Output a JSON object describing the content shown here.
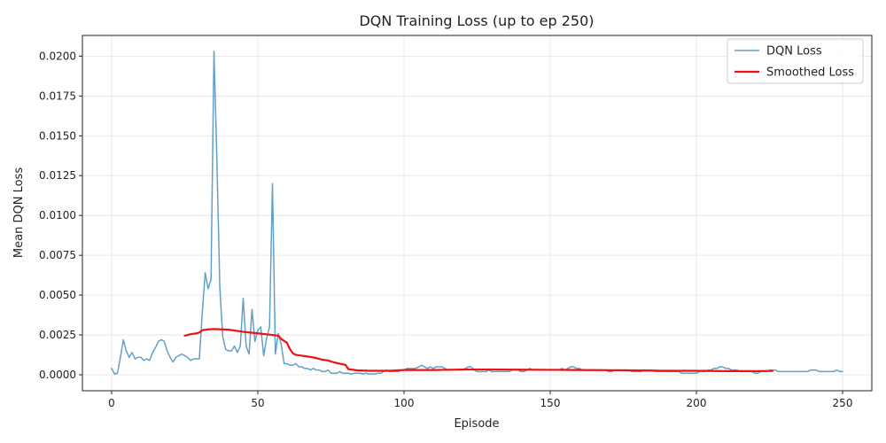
{
  "chart_data": {
    "type": "line",
    "title": "DQN Training Loss (up to ep 250)",
    "xlabel": "Episode",
    "ylabel": "Mean DQN Loss",
    "xlim": [
      -10,
      260
    ],
    "ylim": [
      -0.001,
      0.0213
    ],
    "xticks": [
      0,
      50,
      100,
      150,
      200,
      250
    ],
    "yticks": [
      0.0,
      0.0025,
      0.005,
      0.0075,
      0.01,
      0.0125,
      0.015,
      0.0175,
      0.02
    ],
    "ytick_labels": [
      "0.0000",
      "0.0025",
      "0.0050",
      "0.0075",
      "0.0100",
      "0.0125",
      "0.0150",
      "0.0175",
      "0.0200"
    ],
    "grid": true,
    "legend_position": "upper right",
    "series": [
      {
        "name": "DQN Loss",
        "color": "#1f77b4",
        "points": [
          [
            0,
            0.0004
          ],
          [
            1,
            5e-05
          ],
          [
            2,
            0.0001
          ],
          [
            3,
            0.0011
          ],
          [
            4,
            0.0022
          ],
          [
            5,
            0.0015
          ],
          [
            6,
            0.0011
          ],
          [
            7,
            0.0014
          ],
          [
            8,
            0.001
          ],
          [
            9,
            0.0011
          ],
          [
            10,
            0.0011
          ],
          [
            11,
            0.0009
          ],
          [
            12,
            0.001
          ],
          [
            13,
            0.0009
          ],
          [
            14,
            0.0014
          ],
          [
            15,
            0.0017
          ],
          [
            16,
            0.0021
          ],
          [
            17,
            0.0022
          ],
          [
            18,
            0.0021
          ],
          [
            19,
            0.0015
          ],
          [
            20,
            0.0011
          ],
          [
            21,
            0.0008
          ],
          [
            22,
            0.0011
          ],
          [
            23,
            0.0012
          ],
          [
            24,
            0.0013
          ],
          [
            25,
            0.0012
          ],
          [
            26,
            0.0011
          ],
          [
            27,
            0.0009
          ],
          [
            28,
            0.001
          ],
          [
            29,
            0.001
          ],
          [
            30,
            0.001
          ],
          [
            31,
            0.0039
          ],
          [
            32,
            0.0064
          ],
          [
            33,
            0.0054
          ],
          [
            34,
            0.006
          ],
          [
            35,
            0.0203
          ],
          [
            36,
            0.0135
          ],
          [
            37,
            0.0055
          ],
          [
            38,
            0.0024
          ],
          [
            39,
            0.0016
          ],
          [
            40,
            0.0015
          ],
          [
            41,
            0.0015
          ],
          [
            42,
            0.0018
          ],
          [
            43,
            0.0014
          ],
          [
            44,
            0.0018
          ],
          [
            45,
            0.0048
          ],
          [
            46,
            0.0018
          ],
          [
            47,
            0.0013
          ],
          [
            48,
            0.0041
          ],
          [
            49,
            0.0021
          ],
          [
            50,
            0.0028
          ],
          [
            51,
            0.003
          ],
          [
            52,
            0.0012
          ],
          [
            53,
            0.0023
          ],
          [
            54,
            0.003
          ],
          [
            55,
            0.012
          ],
          [
            56,
            0.0013
          ],
          [
            57,
            0.0026
          ],
          [
            58,
            0.0019
          ],
          [
            59,
            0.0007
          ],
          [
            60,
            0.0007
          ],
          [
            61,
            0.0006
          ],
          [
            62,
            0.0006
          ],
          [
            63,
            0.0007
          ],
          [
            64,
            0.0005
          ],
          [
            65,
            0.0005
          ],
          [
            66,
            0.0004
          ],
          [
            67,
            0.0004
          ],
          [
            68,
            0.0003
          ],
          [
            69,
            0.0004
          ],
          [
            70,
            0.0003
          ],
          [
            71,
            0.0003
          ],
          [
            72,
            0.0002
          ],
          [
            73,
            0.0002
          ],
          [
            74,
            0.0003
          ],
          [
            75,
            0.0001
          ],
          [
            76,
            0.0001
          ],
          [
            77,
            0.0001
          ],
          [
            78,
            0.0002
          ],
          [
            79,
            0.0001
          ],
          [
            80,
            0.0001
          ],
          [
            81,
            0.0001
          ],
          [
            82,
            5e-05
          ],
          [
            83,
            0.0001
          ],
          [
            84,
            0.0001
          ],
          [
            85,
            0.0001
          ],
          [
            86,
            5e-05
          ],
          [
            87,
            0.0001
          ],
          [
            88,
            5e-05
          ],
          [
            89,
            5e-05
          ],
          [
            90,
            5e-05
          ],
          [
            91,
            0.0001
          ],
          [
            92,
            0.0001
          ],
          [
            93,
            0.0002
          ],
          [
            94,
            0.0003
          ],
          [
            95,
            0.0002
          ],
          [
            96,
            0.0002
          ],
          [
            97,
            0.0002
          ],
          [
            98,
            0.0002
          ],
          [
            99,
            0.0003
          ],
          [
            100,
            0.0003
          ],
          [
            101,
            0.0004
          ],
          [
            102,
            0.0004
          ],
          [
            103,
            0.0004
          ],
          [
            104,
            0.0004
          ],
          [
            105,
            0.0005
          ],
          [
            106,
            0.0006
          ],
          [
            107,
            0.0005
          ],
          [
            108,
            0.0004
          ],
          [
            109,
            0.0005
          ],
          [
            110,
            0.0004
          ],
          [
            111,
            0.0005
          ],
          [
            112,
            0.0005
          ],
          [
            113,
            0.0005
          ],
          [
            114,
            0.0004
          ],
          [
            115,
            0.0003
          ],
          [
            116,
            0.0003
          ],
          [
            117,
            0.0003
          ],
          [
            118,
            0.0003
          ],
          [
            119,
            0.0003
          ],
          [
            120,
            0.0003
          ],
          [
            121,
            0.0004
          ],
          [
            122,
            0.0005
          ],
          [
            123,
            0.0005
          ],
          [
            124,
            0.0003
          ],
          [
            125,
            0.0002
          ],
          [
            126,
            0.0002
          ],
          [
            127,
            0.0002
          ],
          [
            128,
            0.0002
          ],
          [
            129,
            0.0003
          ],
          [
            130,
            0.0002
          ],
          [
            131,
            0.0002
          ],
          [
            132,
            0.0002
          ],
          [
            133,
            0.0002
          ],
          [
            134,
            0.0002
          ],
          [
            135,
            0.0002
          ],
          [
            136,
            0.0002
          ],
          [
            137,
            0.0003
          ],
          [
            138,
            0.0003
          ],
          [
            139,
            0.0003
          ],
          [
            140,
            0.0002
          ],
          [
            141,
            0.0002
          ],
          [
            142,
            0.0003
          ],
          [
            143,
            0.0004
          ],
          [
            144,
            0.0003
          ],
          [
            145,
            0.0003
          ],
          [
            146,
            0.0003
          ],
          [
            147,
            0.0003
          ],
          [
            148,
            0.0003
          ],
          [
            149,
            0.0003
          ],
          [
            150,
            0.0003
          ],
          [
            151,
            0.0003
          ],
          [
            152,
            0.0003
          ],
          [
            153,
            0.0003
          ],
          [
            154,
            0.0004
          ],
          [
            155,
            0.0003
          ],
          [
            156,
            0.0004
          ],
          [
            157,
            0.0005
          ],
          [
            158,
            0.0005
          ],
          [
            159,
            0.0004
          ],
          [
            160,
            0.0004
          ],
          [
            161,
            0.0003
          ],
          [
            162,
            0.0003
          ],
          [
            163,
            0.0003
          ],
          [
            164,
            0.0003
          ],
          [
            165,
            0.0003
          ],
          [
            166,
            0.0003
          ],
          [
            167,
            0.0003
          ],
          [
            168,
            0.0003
          ],
          [
            169,
            0.0003
          ],
          [
            170,
            0.0002
          ],
          [
            171,
            0.0002
          ],
          [
            172,
            0.0003
          ],
          [
            173,
            0.0003
          ],
          [
            174,
            0.0003
          ],
          [
            175,
            0.0003
          ],
          [
            176,
            0.0003
          ],
          [
            177,
            0.0003
          ],
          [
            178,
            0.0002
          ],
          [
            179,
            0.0002
          ],
          [
            180,
            0.0002
          ],
          [
            181,
            0.0002
          ],
          [
            182,
            0.0003
          ],
          [
            183,
            0.0003
          ],
          [
            184,
            0.0003
          ],
          [
            185,
            0.0003
          ],
          [
            186,
            0.0002
          ],
          [
            187,
            0.0002
          ],
          [
            188,
            0.0002
          ],
          [
            189,
            0.0002
          ],
          [
            190,
            0.0002
          ],
          [
            191,
            0.0002
          ],
          [
            192,
            0.0002
          ],
          [
            193,
            0.0002
          ],
          [
            194,
            0.0002
          ],
          [
            195,
            0.0001
          ],
          [
            196,
            0.0001
          ],
          [
            197,
            0.0001
          ],
          [
            198,
            0.0001
          ],
          [
            199,
            0.0001
          ],
          [
            200,
            0.0001
          ],
          [
            201,
            0.0002
          ],
          [
            202,
            0.0002
          ],
          [
            203,
            0.0002
          ],
          [
            204,
            0.0003
          ],
          [
            205,
            0.0003
          ],
          [
            206,
            0.0004
          ],
          [
            207,
            0.0004
          ],
          [
            208,
            0.0005
          ],
          [
            209,
            0.0005
          ],
          [
            210,
            0.0004
          ],
          [
            211,
            0.0004
          ],
          [
            212,
            0.0003
          ],
          [
            213,
            0.0003
          ],
          [
            214,
            0.0003
          ],
          [
            215,
            0.0002
          ],
          [
            216,
            0.0002
          ],
          [
            217,
            0.0002
          ],
          [
            218,
            0.0002
          ],
          [
            219,
            0.0002
          ],
          [
            220,
            0.0001
          ],
          [
            221,
            0.0001
          ],
          [
            222,
            0.0002
          ],
          [
            223,
            0.0002
          ],
          [
            224,
            0.0002
          ],
          [
            225,
            0.0003
          ],
          [
            226,
            0.0003
          ],
          [
            227,
            0.0003
          ],
          [
            228,
            0.0002
          ],
          [
            229,
            0.0002
          ],
          [
            230,
            0.0002
          ],
          [
            231,
            0.0002
          ],
          [
            232,
            0.0002
          ],
          [
            233,
            0.0002
          ],
          [
            234,
            0.0002
          ],
          [
            235,
            0.0002
          ],
          [
            236,
            0.0002
          ],
          [
            237,
            0.0002
          ],
          [
            238,
            0.0002
          ],
          [
            239,
            0.0003
          ],
          [
            240,
            0.0003
          ],
          [
            241,
            0.0003
          ],
          [
            242,
            0.0002
          ],
          [
            243,
            0.0002
          ],
          [
            244,
            0.0002
          ],
          [
            245,
            0.0002
          ],
          [
            246,
            0.0002
          ],
          [
            247,
            0.0002
          ],
          [
            248,
            0.0003
          ],
          [
            249,
            0.0002
          ],
          [
            250,
            0.0002
          ]
        ]
      },
      {
        "name": "Smoothed Loss",
        "color": "#ee1111",
        "points": [
          [
            25,
            0.00245
          ],
          [
            27,
            0.00255
          ],
          [
            29,
            0.0026
          ],
          [
            30,
            0.00265
          ],
          [
            31,
            0.0028
          ],
          [
            33,
            0.00285
          ],
          [
            35,
            0.00287
          ],
          [
            40,
            0.00283
          ],
          [
            45,
            0.0027
          ],
          [
            50,
            0.0026
          ],
          [
            55,
            0.0025
          ],
          [
            57,
            0.00245
          ],
          [
            58,
            0.00225
          ],
          [
            60,
            0.002
          ],
          [
            61,
            0.0016
          ],
          [
            62,
            0.00135
          ],
          [
            63,
            0.00125
          ],
          [
            65,
            0.0012
          ],
          [
            68,
            0.00112
          ],
          [
            70,
            0.00105
          ],
          [
            72,
            0.00095
          ],
          [
            74,
            0.0009
          ],
          [
            76,
            0.00078
          ],
          [
            78,
            0.0007
          ],
          [
            80,
            0.00062
          ],
          [
            81,
            0.00035
          ],
          [
            84,
            0.00028
          ],
          [
            88,
            0.00025
          ],
          [
            90,
            0.00025
          ],
          [
            95,
            0.00025
          ],
          [
            100,
            0.0003
          ],
          [
            110,
            0.0003
          ],
          [
            120,
            0.00033
          ],
          [
            130,
            0.00033
          ],
          [
            140,
            0.00032
          ],
          [
            150,
            0.00031
          ],
          [
            160,
            0.0003
          ],
          [
            170,
            0.00029
          ],
          [
            180,
            0.00027
          ],
          [
            190,
            0.00025
          ],
          [
            200,
            0.00025
          ],
          [
            210,
            0.00023
          ],
          [
            220,
            0.00023
          ],
          [
            226,
            0.00024
          ]
        ]
      }
    ]
  }
}
